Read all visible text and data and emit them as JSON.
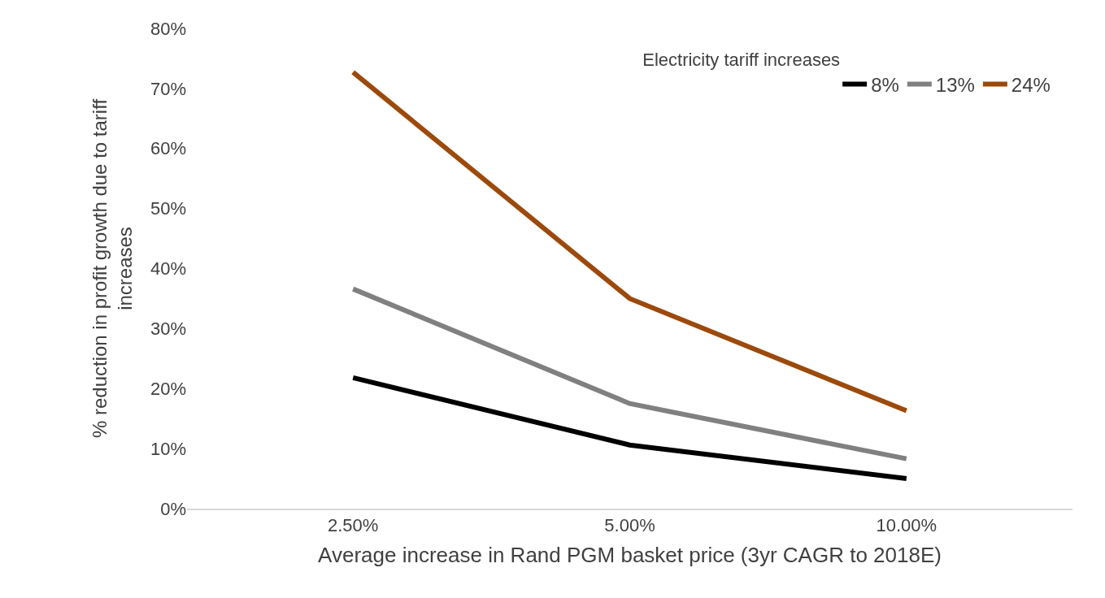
{
  "chart_data": {
    "type": "line",
    "xlabel": "Average increase in Rand PGM basket price (3yr CAGR to 2018E)",
    "ylabel": "% reduction in profit growth due to tariff increases",
    "legend_title": "Electricity tariff increases",
    "categories": [
      "2.50%",
      "5.00%",
      "10.00%"
    ],
    "series": [
      {
        "name": "8%",
        "color": "#000000",
        "values": [
          21.8,
          10.6,
          5.0
        ]
      },
      {
        "name": "13%",
        "color": "#808080",
        "values": [
          36.6,
          17.5,
          8.3
        ]
      },
      {
        "name": "24%",
        "color": "#9c4a0c",
        "values": [
          72.7,
          35.0,
          16.3
        ]
      }
    ],
    "ylim": [
      0,
      80
    ],
    "yticks": [
      {
        "value": 0,
        "label": "0%"
      },
      {
        "value": 10,
        "label": "10%"
      },
      {
        "value": 20,
        "label": "20%"
      },
      {
        "value": 30,
        "label": "30%"
      },
      {
        "value": 40,
        "label": "40%"
      },
      {
        "value": 50,
        "label": "50%"
      },
      {
        "value": 60,
        "label": "60%"
      },
      {
        "value": 70,
        "label": "70%"
      },
      {
        "value": 80,
        "label": "80%"
      }
    ],
    "grid": false,
    "legend": "top right",
    "marker": "none",
    "line_style": "solid"
  }
}
